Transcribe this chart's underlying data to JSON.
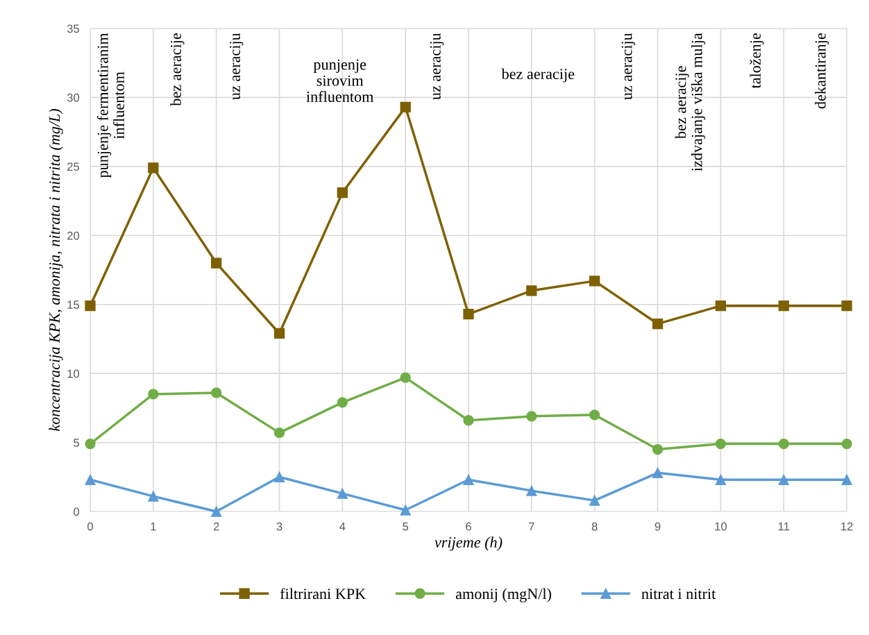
{
  "chart_data": {
    "type": "line",
    "xlabel": "vrijeme (h)",
    "ylabel": "koncentracija KPK, amonija, nitrata i nitrita (mg/L)",
    "x": [
      0,
      1,
      2,
      3,
      4,
      5,
      6,
      7,
      8,
      9,
      10,
      11,
      12
    ],
    "xlim": [
      0,
      12
    ],
    "xticks": [
      0,
      1,
      2,
      3,
      4,
      5,
      6,
      7,
      8,
      9,
      10,
      11,
      12
    ],
    "ylim": [
      0,
      35
    ],
    "yticks": [
      0,
      5,
      10,
      15,
      20,
      25,
      30,
      35
    ],
    "grid": true,
    "legend": "bottom",
    "line_style": "solid",
    "series": [
      {
        "name": "filtrirani KPK",
        "color": "#7f6000",
        "marker": "square",
        "values": [
          14.9,
          24.9,
          18.0,
          12.9,
          23.1,
          29.3,
          14.3,
          16.0,
          16.7,
          13.6,
          14.9,
          14.9,
          14.9
        ]
      },
      {
        "name": "amonij (mgN/l)",
        "color": "#70ad47",
        "marker": "circle",
        "values": [
          4.9,
          8.5,
          8.6,
          5.7,
          7.9,
          9.7,
          6.6,
          6.9,
          7.0,
          4.5,
          4.9,
          4.9,
          4.9
        ]
      },
      {
        "name": "nitrat i nitrit",
        "color": "#5b9bd5",
        "marker": "triangle",
        "values": [
          2.3,
          1.1,
          0.0,
          2.5,
          1.3,
          0.1,
          2.3,
          1.5,
          0.8,
          2.8,
          2.3,
          2.3,
          2.3
        ]
      }
    ],
    "annotations": [
      "punjenje fermentiranim\ninfluentom",
      "bez aeracije",
      "uz aeraciju",
      "punjenje\nsirovim\ninfluentom",
      "uz aeraciju",
      "bez aeracije",
      "uz aeraciju",
      "bez aeracije\nizdvajanje viška mulja",
      "taloženje",
      "dekantiranje"
    ]
  }
}
